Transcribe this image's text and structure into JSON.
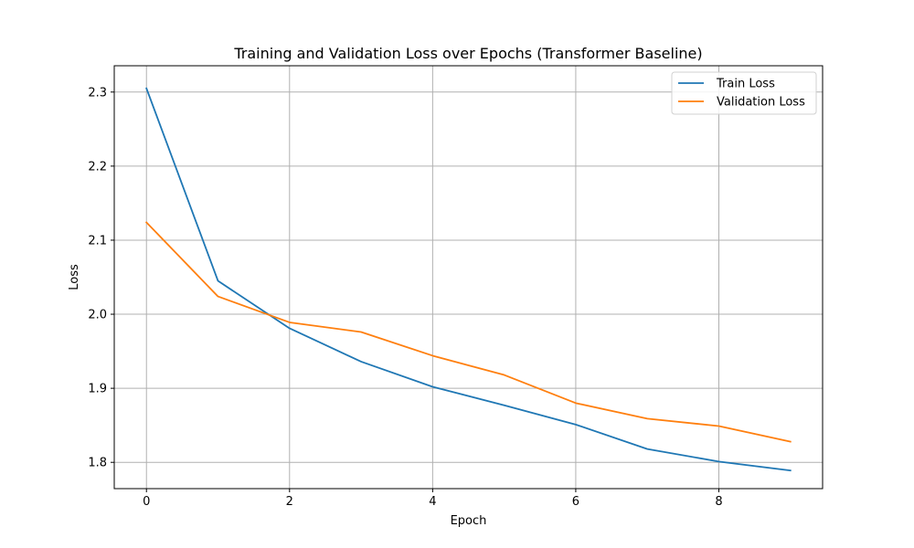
{
  "chart_data": {
    "type": "line",
    "title": "Training and Validation Loss over Epochs (Transformer Baseline)",
    "xlabel": "Epoch",
    "ylabel": "Loss",
    "x": [
      0,
      1,
      2,
      3,
      4,
      5,
      6,
      7,
      8,
      9
    ],
    "xlim": [
      -0.45,
      9.45
    ],
    "ylim": [
      1.7645,
      2.3355
    ],
    "xticks": [
      0,
      2,
      4,
      6,
      8
    ],
    "xtick_labels": [
      "0",
      "2",
      "4",
      "6",
      "8"
    ],
    "yticks": [
      1.8,
      1.9,
      2.0,
      2.1,
      2.2,
      2.3
    ],
    "ytick_labels": [
      "1.8",
      "1.9",
      "2.0",
      "2.1",
      "2.2",
      "2.3"
    ],
    "grid": true,
    "legend_position": "top-right",
    "series": [
      {
        "name": "Train Loss",
        "color": "#1f77b4",
        "values": [
          2.305,
          2.045,
          1.981,
          1.936,
          1.902,
          1.877,
          1.851,
          1.818,
          1.801,
          1.789
        ]
      },
      {
        "name": "Validation Loss",
        "color": "#ff7f0e",
        "values": [
          2.124,
          2.024,
          1.989,
          1.976,
          1.944,
          1.918,
          1.88,
          1.859,
          1.849,
          1.828
        ]
      }
    ]
  }
}
